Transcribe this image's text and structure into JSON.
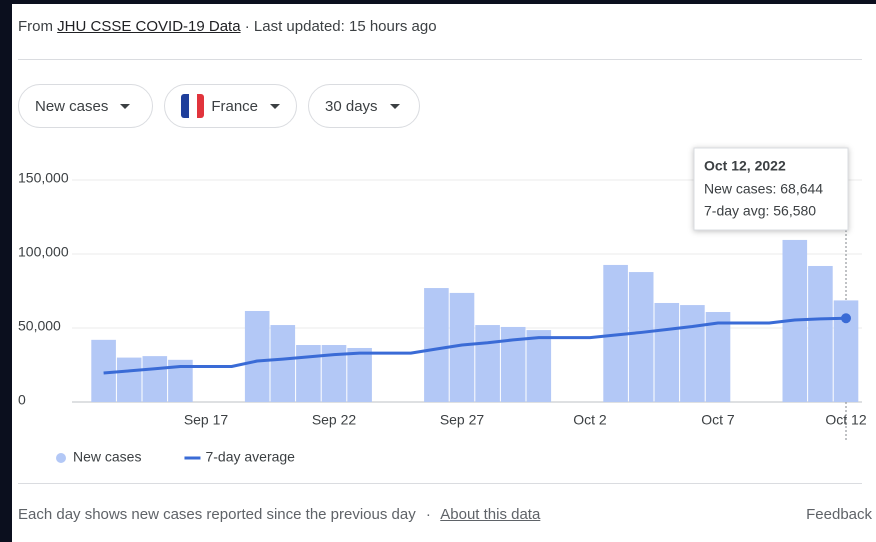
{
  "header": {
    "prefix": "From",
    "source": "JHU CSSE COVID-19 Data",
    "updated": "· Last updated: 15 hours ago"
  },
  "controls": [
    "New cases",
    "France",
    "30 days"
  ],
  "chart_data": {
    "type": "bar",
    "categories": [
      null,
      null,
      null,
      null,
      "Sep 17",
      null,
      null,
      null,
      null,
      "Sep 22",
      null,
      null,
      null,
      null,
      "Sep 27",
      null,
      null,
      null,
      null,
      "Oct 2",
      null,
      null,
      null,
      null,
      "Oct 7",
      null,
      null,
      null,
      null,
      "Oct 12"
    ],
    "series": [
      {
        "name": "New cases",
        "type": "bar",
        "color": "#b3c8f6",
        "values": [
          42000,
          30000,
          31000,
          28500,
          0,
          0,
          61500,
          52000,
          38500,
          38500,
          36500,
          0,
          0,
          77000,
          73700,
          52000,
          50700,
          48600,
          0,
          0,
          92600,
          87800,
          66900,
          65500,
          60800,
          0,
          0,
          109500,
          91900,
          68644
        ]
      },
      {
        "name": "7-day average",
        "type": "line",
        "color": "#3a6bd6",
        "values": [
          19600,
          21000,
          22500,
          24000,
          24000,
          24000,
          27700,
          29000,
          30500,
          32000,
          33000,
          33000,
          33000,
          35800,
          38500,
          40000,
          42000,
          43500,
          43500,
          43500,
          45300,
          47000,
          49000,
          51000,
          53400,
          53400,
          53400,
          55400,
          56200,
          56580
        ]
      }
    ],
    "ylim": [
      0,
      150000
    ],
    "yticks": [
      0,
      {
        "value": 50000,
        "label": "50,000"
      },
      {
        "value": 100000,
        "label": "100,000"
      },
      {
        "value": 150000,
        "label": "150,000"
      }
    ],
    "grid": true,
    "tooltip": {
      "title": "Oct 12, 2022",
      "lines": [
        "New cases: 68,644",
        "7-day avg: 56,580"
      ]
    }
  },
  "footer": {
    "note": "Each day shows new cases reported since the previous day",
    "separator": "·",
    "link": "About this data",
    "feedback": "Feedback"
  }
}
